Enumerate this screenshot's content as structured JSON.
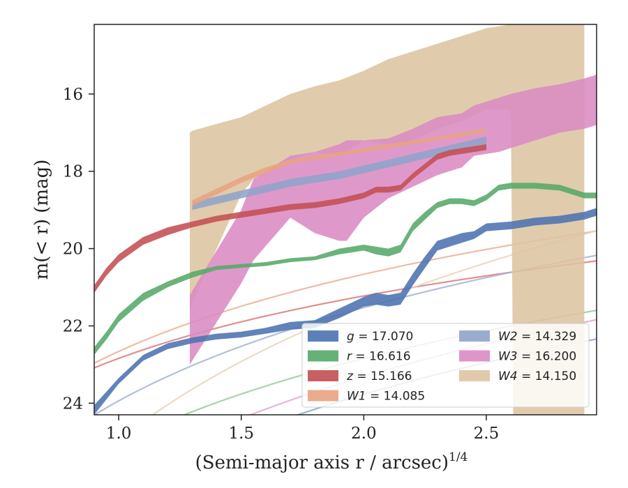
{
  "chart_data": {
    "type": "area",
    "xlabel": "(Semi-major axis r / arcsec)",
    "xlabel_superscript": "1/4",
    "ylabel": "m(< r) (mag)",
    "xlim": [
      0.9,
      2.95
    ],
    "ylim": [
      24.3,
      14.2
    ],
    "y_inverted": true,
    "x_ticks": [
      "1.0",
      "1.5",
      "2.0",
      "2.5"
    ],
    "x_tick_values": [
      1.0,
      1.5,
      2.0,
      2.5
    ],
    "y_ticks": [
      "16",
      "18",
      "20",
      "22",
      "24"
    ],
    "y_tick_values": [
      16,
      18,
      20,
      22,
      24
    ],
    "grid": false,
    "legend_placement": "lower right",
    "legend_columns": 2,
    "series": [
      {
        "name": "g = 17.070",
        "legend_var": "g",
        "legend_val": "= 17.070",
        "color": "#4c72b0",
        "fit_color": "#87a7c8",
        "x": [
          0.9,
          0.95,
          1.0,
          1.1,
          1.2,
          1.3,
          1.4,
          1.5,
          1.6,
          1.7,
          1.8,
          1.9,
          2.0,
          2.05,
          2.1,
          2.15,
          2.2,
          2.25,
          2.3,
          2.35,
          2.4,
          2.45,
          2.5,
          2.6,
          2.7,
          2.8,
          2.9,
          2.95
        ],
        "y_lower": [
          24.3,
          23.9,
          23.5,
          22.9,
          22.6,
          22.45,
          22.35,
          22.3,
          22.2,
          22.1,
          22.05,
          21.8,
          21.5,
          21.45,
          21.5,
          21.45,
          20.95,
          20.5,
          20.05,
          19.95,
          19.85,
          19.75,
          19.55,
          19.5,
          19.4,
          19.35,
          19.25,
          19.15
        ],
        "y_upper": [
          24.05,
          23.7,
          23.35,
          22.75,
          22.45,
          22.3,
          22.2,
          22.15,
          22.05,
          21.9,
          21.85,
          21.55,
          21.25,
          21.15,
          21.2,
          21.15,
          20.65,
          20.2,
          19.8,
          19.7,
          19.6,
          19.55,
          19.35,
          19.3,
          19.2,
          19.15,
          19.05,
          18.95
        ],
        "fit": {
          "a": 26.32,
          "b": -3.68,
          "x_start": 0.9,
          "x_end": 2.95
        }
      },
      {
        "name": "r = 16.616",
        "legend_var": "r",
        "legend_val": "= 16.616",
        "color": "#55a868",
        "fit_color": "#98cb9a",
        "x": [
          0.9,
          0.95,
          1.0,
          1.1,
          1.2,
          1.3,
          1.4,
          1.5,
          1.6,
          1.7,
          1.8,
          1.9,
          2.0,
          2.05,
          2.1,
          2.15,
          2.2,
          2.25,
          2.3,
          2.35,
          2.4,
          2.45,
          2.5,
          2.55,
          2.6,
          2.7,
          2.8,
          2.9,
          2.95
        ],
        "y_lower": [
          22.75,
          22.35,
          21.9,
          21.35,
          21.0,
          20.75,
          20.55,
          20.5,
          20.45,
          20.35,
          20.3,
          20.15,
          20.05,
          20.15,
          20.2,
          20.1,
          19.55,
          19.25,
          18.95,
          18.85,
          18.85,
          18.9,
          18.75,
          18.5,
          18.45,
          18.45,
          18.5,
          18.7,
          18.7
        ],
        "y_upper": [
          22.55,
          22.15,
          21.7,
          21.15,
          20.85,
          20.6,
          20.45,
          20.4,
          20.35,
          20.25,
          20.2,
          20.0,
          19.9,
          19.95,
          20.0,
          19.9,
          19.35,
          19.05,
          18.8,
          18.7,
          18.7,
          18.75,
          18.6,
          18.35,
          18.3,
          18.3,
          18.35,
          18.55,
          18.55
        ],
        "fit": {
          "a": 25.06,
          "b": -3.2,
          "x_start": 0.9,
          "x_end": 2.95
        }
      },
      {
        "name": "z = 15.166",
        "legend_var": "z",
        "legend_val": "= 15.166",
        "color": "#c44e52",
        "fit_color": "#db7b7b",
        "x": [
          0.9,
          0.95,
          1.0,
          1.1,
          1.2,
          1.3,
          1.4,
          1.5,
          1.6,
          1.7,
          1.8,
          1.9,
          2.0,
          2.05,
          2.1,
          2.15,
          2.2,
          2.25,
          2.3,
          2.35,
          2.4,
          2.45,
          2.5
        ],
        "y_lower": [
          21.15,
          20.7,
          20.35,
          19.9,
          19.65,
          19.45,
          19.3,
          19.2,
          19.1,
          19.0,
          18.95,
          18.85,
          18.7,
          18.55,
          18.55,
          18.5,
          18.2,
          17.95,
          17.7,
          17.6,
          17.55,
          17.5,
          17.45
        ],
        "y_upper": [
          20.95,
          20.5,
          20.15,
          19.7,
          19.45,
          19.3,
          19.15,
          19.05,
          18.95,
          18.85,
          18.8,
          18.7,
          18.55,
          18.4,
          18.4,
          18.35,
          18.05,
          17.8,
          17.55,
          17.45,
          17.4,
          17.35,
          17.3
        ],
        "fit": {
          "a": 22.84,
          "b": -2.33,
          "x_start": 0.9,
          "x_end": 2.95
        }
      },
      {
        "name": "W1 = 14.085",
        "legend_var": "W1",
        "legend_val": "= 14.085",
        "color": "#e8a37f",
        "fit_color": "#eab096",
        "x": [
          1.3,
          1.4,
          1.5,
          1.6,
          1.7,
          1.8,
          1.9,
          2.0,
          2.1,
          2.2,
          2.3,
          2.4,
          2.5
        ],
        "y_lower": [
          18.9,
          18.6,
          18.3,
          18.05,
          17.8,
          17.7,
          17.6,
          17.5,
          17.4,
          17.3,
          17.2,
          17.1,
          17.0
        ],
        "y_upper": [
          18.75,
          18.45,
          18.15,
          17.9,
          17.7,
          17.6,
          17.5,
          17.4,
          17.3,
          17.2,
          17.1,
          17.0,
          16.9
        ],
        "fit": {
          "a": 22.66,
          "b": -2.88,
          "x_start": 0.9,
          "x_end": 2.95
        }
      },
      {
        "name": "W2 = 14.329",
        "legend_var": "W2",
        "legend_val": "= 14.329",
        "color": "#8fa3c9",
        "fit_color": "#a4b4d2",
        "x": [
          1.3,
          1.4,
          1.5,
          1.6,
          1.7,
          1.8,
          1.9,
          2.0,
          2.1,
          2.2,
          2.3,
          2.4,
          2.5
        ],
        "y_lower": [
          19.0,
          18.85,
          18.7,
          18.55,
          18.4,
          18.3,
          18.2,
          18.05,
          17.9,
          17.75,
          17.6,
          17.45,
          17.3
        ],
        "y_upper": [
          18.8,
          18.65,
          18.5,
          18.35,
          18.2,
          18.1,
          18.0,
          17.85,
          17.7,
          17.55,
          17.4,
          17.25,
          17.1
        ],
        "fit": {
          "a": 23.94,
          "b": -3.48,
          "x_start": 0.9,
          "x_end": 2.95
        }
      },
      {
        "name": "W3 = 16.200",
        "legend_var": "W3",
        "legend_val": "= 16.200",
        "color": "#da8bc3",
        "fit_color": "#e4a8d4",
        "x": [
          1.29,
          1.5,
          1.55,
          1.7,
          1.8,
          1.9,
          1.93,
          2.0,
          2.1,
          2.2,
          2.3,
          2.4,
          2.45,
          2.55,
          2.6,
          2.7,
          2.8,
          2.9,
          2.95
        ],
        "y_lower": [
          23.0,
          20.9,
          20.3,
          19.2,
          19.6,
          19.8,
          19.8,
          19.2,
          18.7,
          18.4,
          18.1,
          17.9,
          17.6,
          17.5,
          17.4,
          17.2,
          17.0,
          16.9,
          16.8
        ],
        "y_upper": [
          21.2,
          19.0,
          18.2,
          17.6,
          17.5,
          17.3,
          17.2,
          17.2,
          17.15,
          16.9,
          16.6,
          16.5,
          16.3,
          16.1,
          16.0,
          15.85,
          15.75,
          15.6,
          15.5
        ],
        "fit": {
          "a": 25.93,
          "b": -3.78,
          "x_start": 0.9,
          "x_end": 2.95
        }
      },
      {
        "name": "W4 = 14.150",
        "legend_var": "W4",
        "legend_val": "= 14.150",
        "color": "#ddc4a2",
        "fit_color": "#e7d5bd",
        "x": [
          1.29,
          1.3,
          1.5,
          1.55,
          1.6,
          1.7,
          1.8,
          1.9,
          2.0,
          2.1,
          2.2,
          2.3,
          2.4,
          2.5,
          2.6,
          2.61,
          2.7,
          2.8,
          2.89,
          2.9
        ],
        "y_lower": [
          21.6,
          21.4,
          18.6,
          18.2,
          18.0,
          17.7,
          17.5,
          17.6,
          17.2,
          17.3,
          17.2,
          16.9,
          16.7,
          16.4,
          16.4,
          24.3,
          24.3,
          24.3,
          24.3,
          24.3
        ],
        "y_upper": [
          17.0,
          16.95,
          16.6,
          16.45,
          16.3,
          16.0,
          15.8,
          15.65,
          15.4,
          15.1,
          14.9,
          14.7,
          14.5,
          14.3,
          14.2,
          14.2,
          14.2,
          14.2,
          14.2,
          14.2
        ],
        "fit": {
          "a": 24.95,
          "b": -5.0,
          "x_start": 0.95,
          "x_end": 2.95
        }
      }
    ]
  }
}
